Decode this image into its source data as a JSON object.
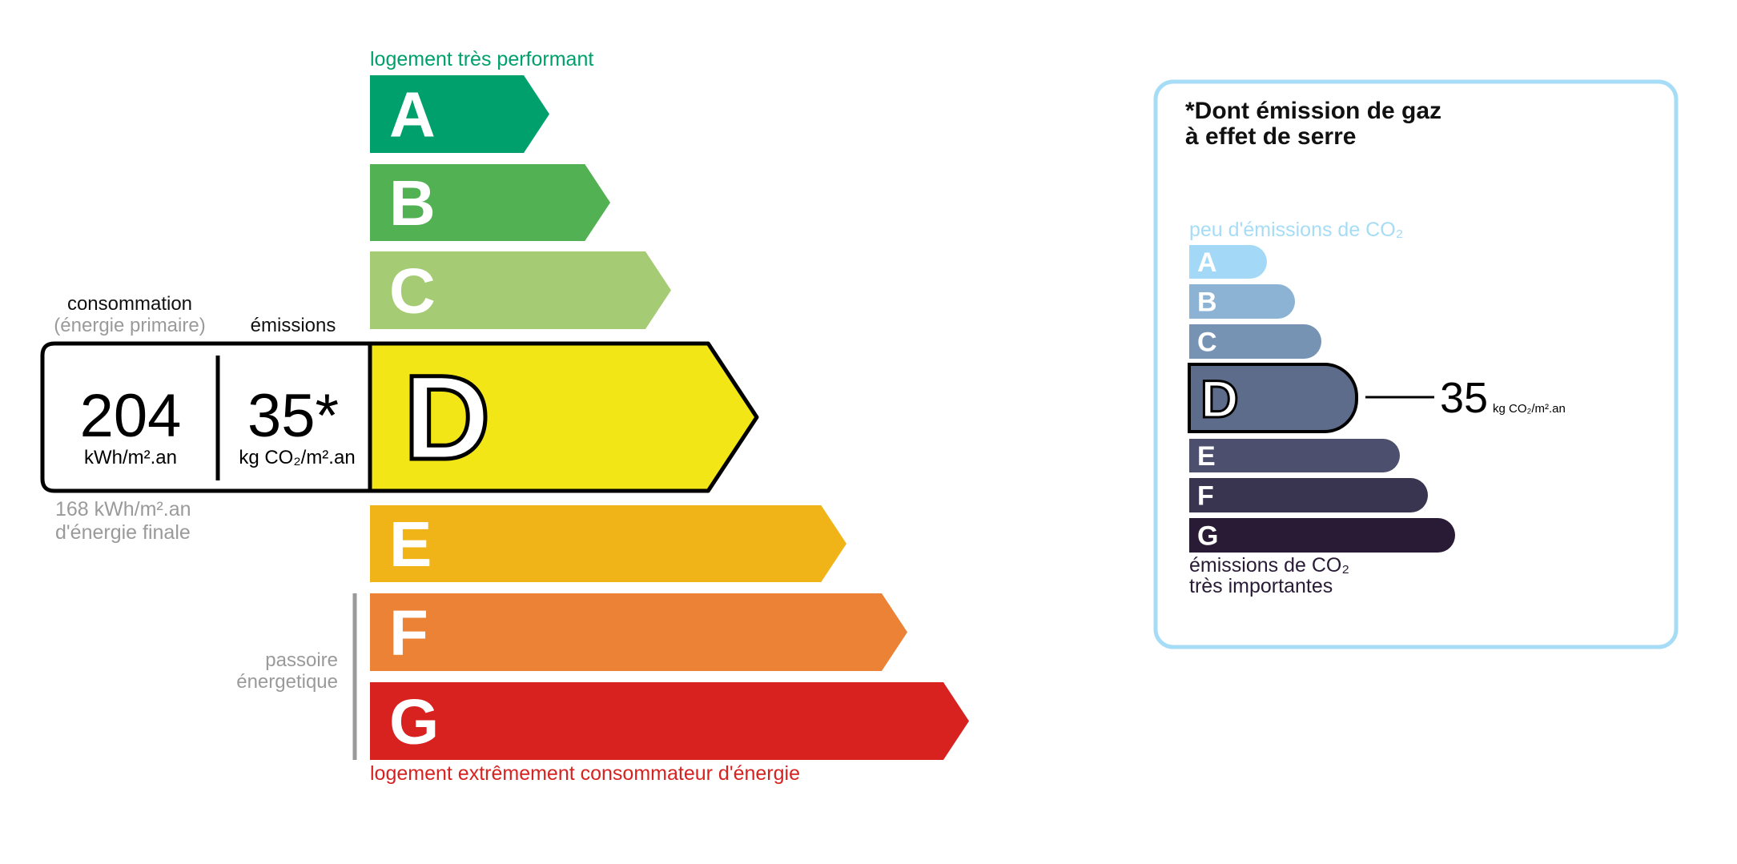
{
  "energy_label": {
    "top_caption": "logement très performant",
    "bottom_caption": "logement extrêmement consommateur d'énergie",
    "top_caption_color": "#00a06d",
    "bottom_caption_color": "#d7221f",
    "classes": [
      {
        "letter": "A",
        "color": "#00a06d"
      },
      {
        "letter": "B",
        "color": "#52b153"
      },
      {
        "letter": "C",
        "color": "#a5cc74"
      },
      {
        "letter": "D",
        "color": "#f2e617"
      },
      {
        "letter": "E",
        "color": "#f0b418"
      },
      {
        "letter": "F",
        "color": "#eb8235"
      },
      {
        "letter": "G",
        "color": "#d7221f"
      }
    ],
    "active_class": "D",
    "consumption_label": "consommation",
    "consumption_sublabel": "(énergie primaire)",
    "emissions_label": "émissions",
    "consumption_value": "204",
    "consumption_unit": "kWh/m².an",
    "emissions_value": "35*",
    "emissions_unit": "kg CO₂/m².an",
    "final_energy_value": "168 kWh/m².an",
    "final_energy_label": "d'énergie finale",
    "passoire_line1": "passoire",
    "passoire_line2": "énergetique"
  },
  "ges_panel": {
    "title_line1": "*Dont émission de gaz",
    "title_line2": "à effet de serre",
    "top_caption": "peu d'émissions de CO₂",
    "bottom_caption_line1": "émissions de CO₂",
    "bottom_caption_line2": "très importantes",
    "border_color": "#a6dcf6",
    "classes": [
      {
        "letter": "A",
        "color": "#a3d9f6"
      },
      {
        "letter": "B",
        "color": "#8db3d4"
      },
      {
        "letter": "C",
        "color": "#7693b4"
      },
      {
        "letter": "D",
        "color": "#5e6c8c"
      },
      {
        "letter": "E",
        "color": "#4c4f6d"
      },
      {
        "letter": "F",
        "color": "#39344f"
      },
      {
        "letter": "G",
        "color": "#291b35"
      }
    ],
    "active_class": "D",
    "value": "35",
    "unit": "kg CO₂/m².an"
  }
}
